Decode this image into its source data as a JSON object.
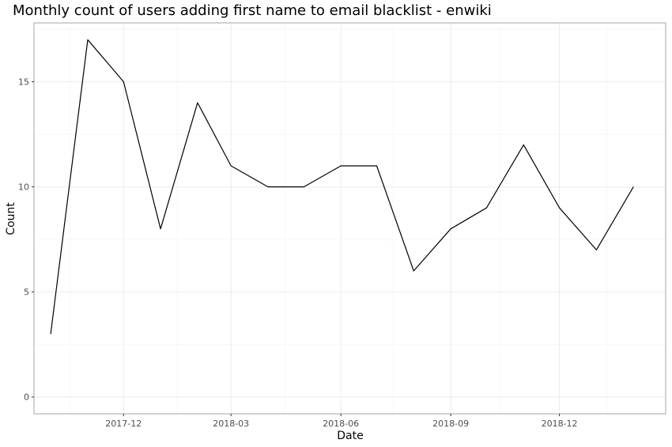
{
  "chart_data": {
    "type": "line",
    "title": "Monthly count of users adding first name to email blacklist - enwiki",
    "xlabel": "Date",
    "ylabel": "Count",
    "x": [
      "2017-10",
      "2017-11",
      "2017-12",
      "2018-01",
      "2018-02",
      "2018-03",
      "2018-04",
      "2018-05",
      "2018-06",
      "2018-07",
      "2018-08",
      "2018-09",
      "2018-10",
      "2018-11",
      "2018-12",
      "2019-01",
      "2019-02"
    ],
    "series": [
      {
        "values": [
          3,
          17,
          15,
          8,
          14,
          11,
          10,
          10,
          11,
          11,
          6,
          8,
          9,
          12,
          9,
          7,
          10
        ]
      }
    ],
    "x_ticks": [
      "2017-12",
      "2018-03",
      "2018-06",
      "2018-09",
      "2018-12"
    ],
    "y_ticks": [
      0,
      5,
      10,
      15
    ],
    "ylim": [
      -0.8,
      17.8
    ],
    "xlim": [
      "2017-09-17",
      "2019-02-28"
    ],
    "grid": true,
    "line_color": "#000000"
  }
}
